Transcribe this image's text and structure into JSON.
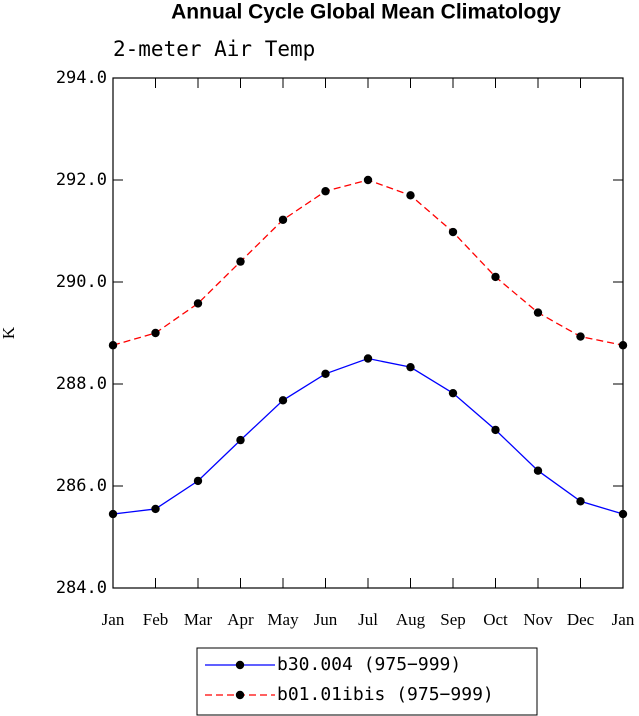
{
  "chart_data": {
    "type": "line",
    "title": "Annual Cycle Global Mean Climatology",
    "subtitle": "2-meter Air Temp",
    "y_label": "K",
    "categories": [
      "Jan",
      "Feb",
      "Mar",
      "Apr",
      "May",
      "Jun",
      "Jul",
      "Aug",
      "Sep",
      "Oct",
      "Nov",
      "Dec",
      "Jan"
    ],
    "series": [
      {
        "name": "b30.004 (975−999)",
        "color": "#0000ff",
        "dash": "solid",
        "values": [
          285.45,
          285.55,
          286.1,
          286.9,
          287.68,
          288.2,
          288.5,
          288.33,
          287.82,
          287.1,
          286.3,
          285.7,
          285.45
        ]
      },
      {
        "name": "b01.01ibis (975−999)",
        "color": "#ff0000",
        "dash": "dashed",
        "values": [
          288.76,
          289.0,
          289.58,
          290.4,
          291.22,
          291.78,
          292.0,
          291.7,
          290.98,
          290.1,
          289.4,
          288.93,
          288.76
        ]
      }
    ],
    "ylim": [
      284,
      294
    ],
    "yticks": [
      {
        "value": 284,
        "label": "284.0"
      },
      {
        "value": 286,
        "label": "286.0"
      },
      {
        "value": 288,
        "label": "288.0"
      },
      {
        "value": 290,
        "label": "290.0"
      },
      {
        "value": 292,
        "label": "292.0"
      },
      {
        "value": 294,
        "label": "294.0"
      }
    ],
    "legend": "bottom"
  }
}
